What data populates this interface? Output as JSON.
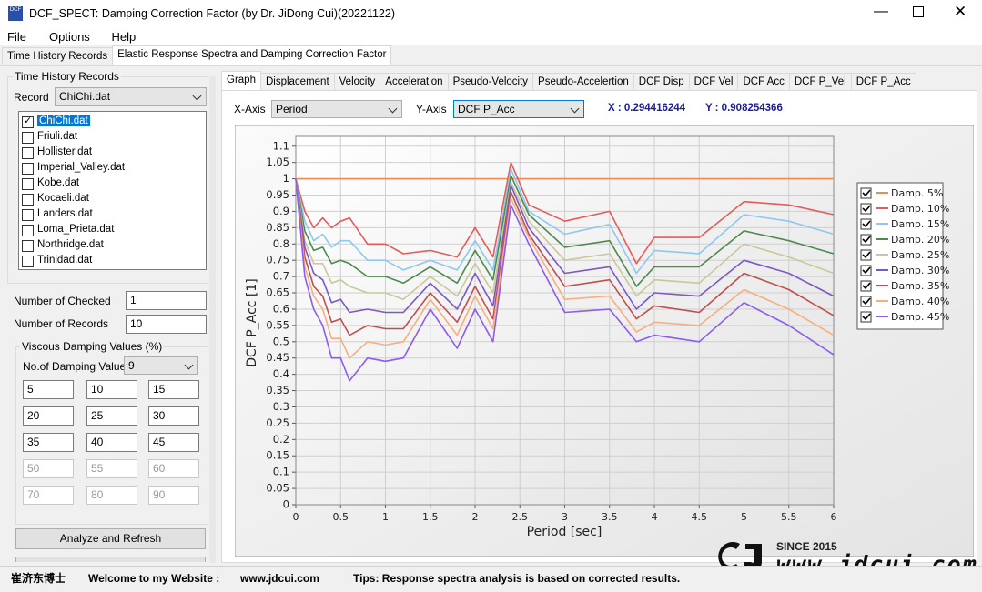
{
  "window": {
    "title": "DCF_SPECT: Damping Correction Factor (by Dr. JiDong Cui)(20221122)"
  },
  "menu": [
    "File",
    "Options",
    "Help"
  ],
  "main_tabs": [
    "Time History Records",
    "Elastic Response Spectra and Damping Correction Factor"
  ],
  "left": {
    "group_title": "Time History Records",
    "record_label": "Record",
    "record_value": "ChiChi.dat",
    "files": [
      {
        "name": "ChiChi.dat",
        "checked": true
      },
      {
        "name": "Friuli.dat",
        "checked": false
      },
      {
        "name": "Hollister.dat",
        "checked": false
      },
      {
        "name": "Imperial_Valley.dat",
        "checked": false
      },
      {
        "name": "Kobe.dat",
        "checked": false
      },
      {
        "name": "Kocaeli.dat",
        "checked": false
      },
      {
        "name": "Landers.dat",
        "checked": false
      },
      {
        "name": "Loma_Prieta.dat",
        "checked": false
      },
      {
        "name": "Northridge.dat",
        "checked": false
      },
      {
        "name": "Trinidad.dat",
        "checked": false
      }
    ],
    "checked_label": "Number of Checked",
    "checked_value": 1,
    "records_label": "Number of Records",
    "records_value": 10,
    "damping_group": "Viscous Damping Values (%)",
    "damping_count_label": "No.of Damping Values",
    "damping_count_value": 9,
    "damping_values": [
      5,
      10,
      15,
      20,
      25,
      30,
      35,
      40,
      45
    ],
    "disabled_values": [
      50,
      55,
      60,
      70,
      80,
      90
    ],
    "button": "Analyze and Refresh"
  },
  "graph_tabs": [
    "Graph",
    "Displacement",
    "Velocity",
    "Acceleration",
    "Pseudo-Velocity",
    "Pseudo-Accelertion",
    "DCF Disp",
    "DCF Vel",
    "DCF Acc",
    "DCF P_Vel",
    "DCF P_Acc"
  ],
  "axis_select": {
    "x_label": "X-Axis",
    "x_value": "Period",
    "y_label": "Y-Axis",
    "y_value": "DCF P_Acc",
    "cursor_x": "X : 0.294416244",
    "cursor_y": "Y : 0.908254366"
  },
  "chart_data": {
    "type": "line",
    "xlabel": "Period [sec]",
    "ylabel": "DCF P_Acc [1]",
    "x": [
      0,
      0.1,
      0.2,
      0.3,
      0.4,
      0.5,
      0.6,
      0.8,
      1.0,
      1.2,
      1.5,
      1.8,
      2.0,
      2.2,
      2.4,
      2.6,
      3.0,
      3.5,
      3.8,
      4.0,
      4.5,
      5.0,
      5.5,
      6.0
    ],
    "xlim": [
      0,
      6
    ],
    "ylim": [
      0,
      1.13
    ],
    "xticks": [
      0,
      0.5,
      1,
      1.5,
      2,
      2.5,
      3,
      3.5,
      4,
      4.5,
      5,
      5.5,
      6
    ],
    "yticks": [
      0,
      0.05,
      0.1,
      0.15,
      0.2,
      0.25,
      0.3,
      0.35,
      0.4,
      0.45,
      0.5,
      0.55,
      0.6,
      0.65,
      0.7,
      0.75,
      0.8,
      0.85,
      0.9,
      0.95,
      1,
      1.05,
      1.1
    ],
    "grid": true,
    "legend": "right",
    "series": [
      {
        "name": "Damp. 5%",
        "color": "#f28a50",
        "values": [
          1,
          1,
          1,
          1,
          1,
          1,
          1,
          1,
          1,
          1,
          1,
          1,
          1,
          1,
          1,
          1,
          1,
          1,
          1,
          1,
          1,
          1,
          1,
          1
        ]
      },
      {
        "name": "Damp. 10%",
        "color": "#e85a5a",
        "values": [
          1.0,
          0.9,
          0.85,
          0.88,
          0.85,
          0.87,
          0.88,
          0.8,
          0.8,
          0.77,
          0.78,
          0.76,
          0.85,
          0.76,
          1.05,
          0.92,
          0.87,
          0.9,
          0.74,
          0.82,
          0.82,
          0.93,
          0.92,
          0.89
        ]
      },
      {
        "name": "Damp. 15%",
        "color": "#8ec8f0",
        "values": [
          1.0,
          0.87,
          0.81,
          0.83,
          0.79,
          0.81,
          0.81,
          0.75,
          0.75,
          0.72,
          0.75,
          0.72,
          0.81,
          0.72,
          1.03,
          0.9,
          0.83,
          0.86,
          0.71,
          0.78,
          0.77,
          0.89,
          0.87,
          0.83
        ]
      },
      {
        "name": "Damp. 20%",
        "color": "#4e8a4e",
        "values": [
          1.0,
          0.84,
          0.78,
          0.79,
          0.74,
          0.75,
          0.74,
          0.7,
          0.7,
          0.68,
          0.73,
          0.68,
          0.78,
          0.69,
          1.01,
          0.89,
          0.79,
          0.81,
          0.67,
          0.73,
          0.73,
          0.84,
          0.81,
          0.77
        ]
      },
      {
        "name": "Damp. 25%",
        "color": "#c8c898",
        "values": [
          1.0,
          0.81,
          0.74,
          0.74,
          0.68,
          0.69,
          0.67,
          0.65,
          0.65,
          0.63,
          0.7,
          0.64,
          0.74,
          0.65,
          0.99,
          0.87,
          0.75,
          0.77,
          0.64,
          0.69,
          0.68,
          0.8,
          0.76,
          0.71
        ]
      },
      {
        "name": "Damp. 30%",
        "color": "#7b58c8",
        "values": [
          1.0,
          0.79,
          0.71,
          0.69,
          0.62,
          0.63,
          0.59,
          0.6,
          0.59,
          0.59,
          0.68,
          0.6,
          0.71,
          0.61,
          0.98,
          0.85,
          0.71,
          0.73,
          0.6,
          0.65,
          0.64,
          0.75,
          0.71,
          0.64
        ]
      },
      {
        "name": "Damp. 35%",
        "color": "#c0504d",
        "values": [
          1.0,
          0.76,
          0.67,
          0.64,
          0.56,
          0.57,
          0.52,
          0.55,
          0.54,
          0.54,
          0.65,
          0.56,
          0.67,
          0.57,
          0.96,
          0.83,
          0.67,
          0.69,
          0.57,
          0.61,
          0.59,
          0.71,
          0.66,
          0.58
        ]
      },
      {
        "name": "Damp. 40%",
        "color": "#f6b07e",
        "values": [
          1.0,
          0.73,
          0.64,
          0.6,
          0.51,
          0.51,
          0.45,
          0.5,
          0.49,
          0.5,
          0.63,
          0.52,
          0.64,
          0.54,
          0.94,
          0.82,
          0.63,
          0.64,
          0.53,
          0.56,
          0.55,
          0.66,
          0.6,
          0.52
        ]
      },
      {
        "name": "Damp. 45%",
        "color": "#8a5cf0",
        "values": [
          1.0,
          0.7,
          0.6,
          0.55,
          0.45,
          0.45,
          0.38,
          0.45,
          0.44,
          0.45,
          0.6,
          0.48,
          0.6,
          0.5,
          0.92,
          0.8,
          0.59,
          0.6,
          0.5,
          0.52,
          0.5,
          0.62,
          0.55,
          0.46
        ]
      }
    ]
  },
  "watermark": {
    "since": "SINCE 2015",
    "url": "www.jdcui.com"
  },
  "status": [
    "崔济东博士",
    "Welcome to my Website :",
    "www.jdcui.com",
    "Tips: Response spectra analysis is based on corrected results."
  ]
}
